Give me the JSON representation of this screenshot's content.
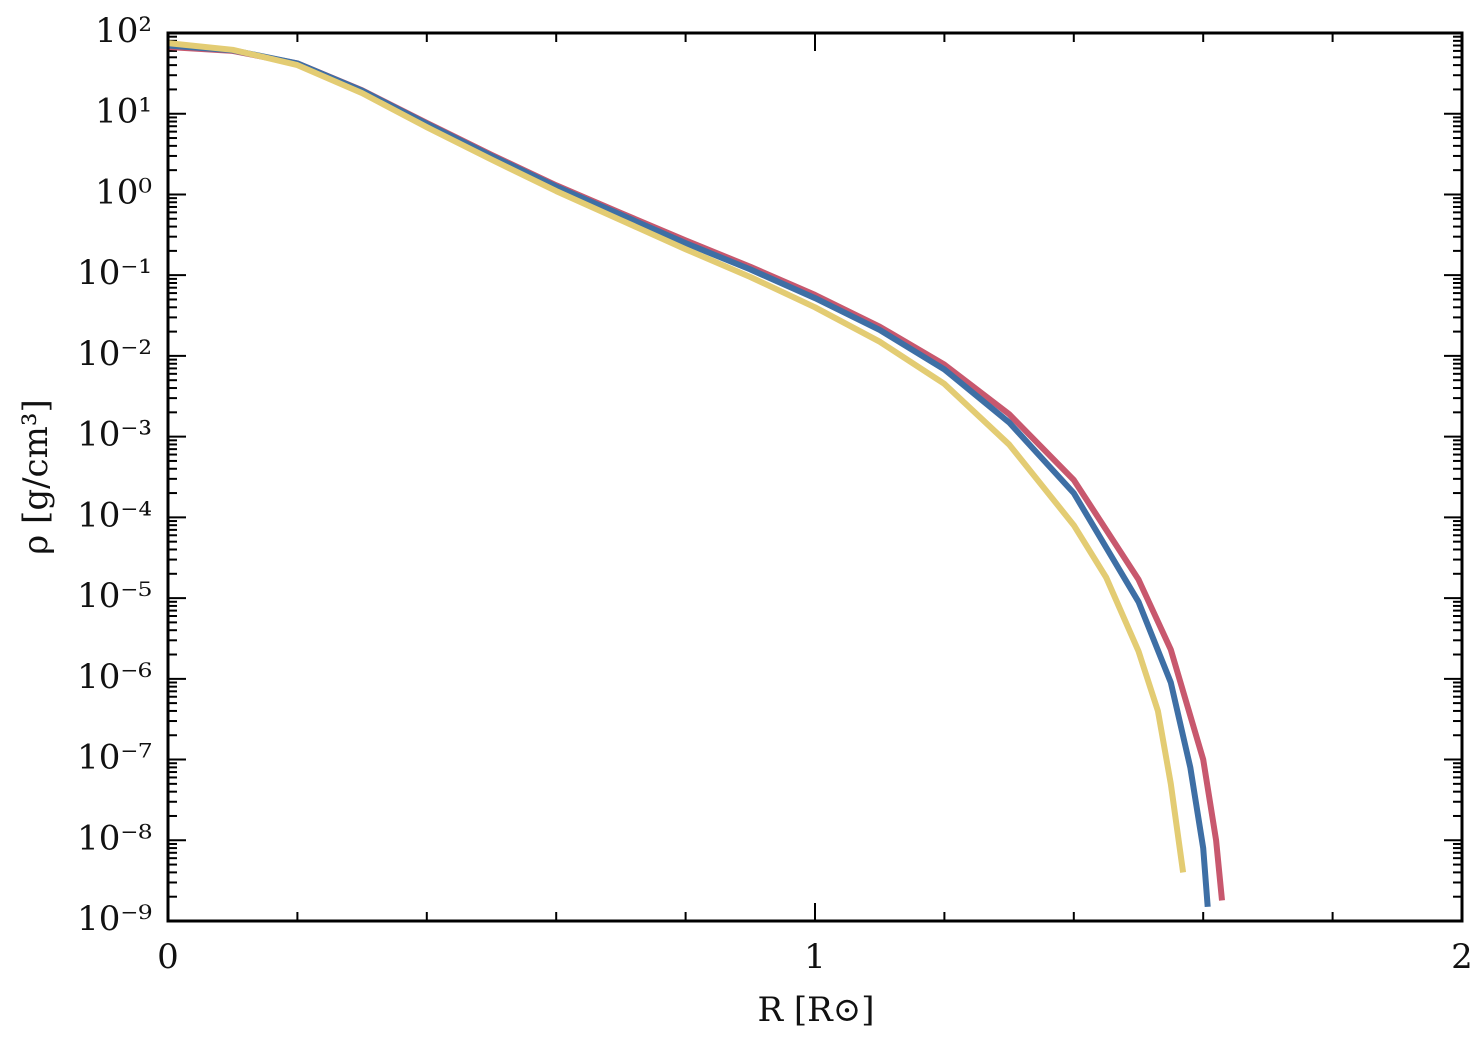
{
  "chart_data": {
    "type": "line",
    "x_label": "R [R⊙]",
    "y_label": "ρ [g/cm³]",
    "xlim": [
      0,
      2
    ],
    "xticks": [
      0,
      1,
      2
    ],
    "ylim": [
      1e-09,
      100
    ],
    "log_y": true,
    "yticks": [
      {
        "value": 100,
        "label": "10²"
      },
      {
        "value": 10,
        "label": "10¹"
      },
      {
        "value": 1,
        "label": "10⁰"
      },
      {
        "value": 0.1,
        "label": "10⁻¹"
      },
      {
        "value": 0.01,
        "label": "10⁻²"
      },
      {
        "value": 0.001,
        "label": "10⁻³"
      },
      {
        "value": 0.0001,
        "label": "10⁻⁴"
      },
      {
        "value": 1e-05,
        "label": "10⁻⁵"
      },
      {
        "value": 1e-06,
        "label": "10⁻⁶"
      },
      {
        "value": 1e-07,
        "label": "10⁻⁷"
      },
      {
        "value": 1e-08,
        "label": "10⁻⁸"
      },
      {
        "value": 1e-09,
        "label": "10⁻⁹"
      }
    ],
    "series": [
      {
        "color": "#c8586e",
        "x": [
          0,
          0.1,
          0.2,
          0.3,
          0.4,
          0.5,
          0.6,
          0.7,
          0.8,
          0.9,
          1.0,
          1.1,
          1.2,
          1.3,
          1.4,
          1.5,
          1.55,
          1.6,
          1.62,
          1.629
        ],
        "values": [
          67,
          60,
          42,
          19.5,
          7.7,
          3.1,
          1.3,
          0.59,
          0.27,
          0.127,
          0.057,
          0.023,
          0.0078,
          0.0019,
          0.00029,
          1.7e-05,
          2.3e-06,
          1e-07,
          1e-08,
          1.8e-09
        ]
      },
      {
        "color": "#3e6fa5",
        "x": [
          0,
          0.1,
          0.2,
          0.3,
          0.4,
          0.5,
          0.6,
          0.7,
          0.8,
          0.9,
          1.0,
          1.1,
          1.2,
          1.3,
          1.4,
          1.5,
          1.55,
          1.58,
          1.6,
          1.607
        ],
        "values": [
          70,
          61,
          42,
          19.3,
          7.5,
          3.0,
          1.25,
          0.56,
          0.25,
          0.118,
          0.052,
          0.021,
          0.0068,
          0.0015,
          0.0002,
          9e-06,
          9e-07,
          8e-08,
          8e-09,
          1.5e-09
        ]
      },
      {
        "color": "#e3cc73",
        "x": [
          0,
          0.1,
          0.2,
          0.3,
          0.4,
          0.5,
          0.6,
          0.7,
          0.8,
          0.9,
          1.0,
          1.1,
          1.2,
          1.3,
          1.4,
          1.45,
          1.5,
          1.53,
          1.55,
          1.569
        ],
        "values": [
          75,
          62,
          40,
          18,
          6.8,
          2.7,
          1.1,
          0.48,
          0.21,
          0.095,
          0.04,
          0.015,
          0.0045,
          0.0008,
          8e-05,
          1.8e-05,
          2.2e-06,
          4e-07,
          5e-08,
          4e-09
        ]
      }
    ]
  }
}
